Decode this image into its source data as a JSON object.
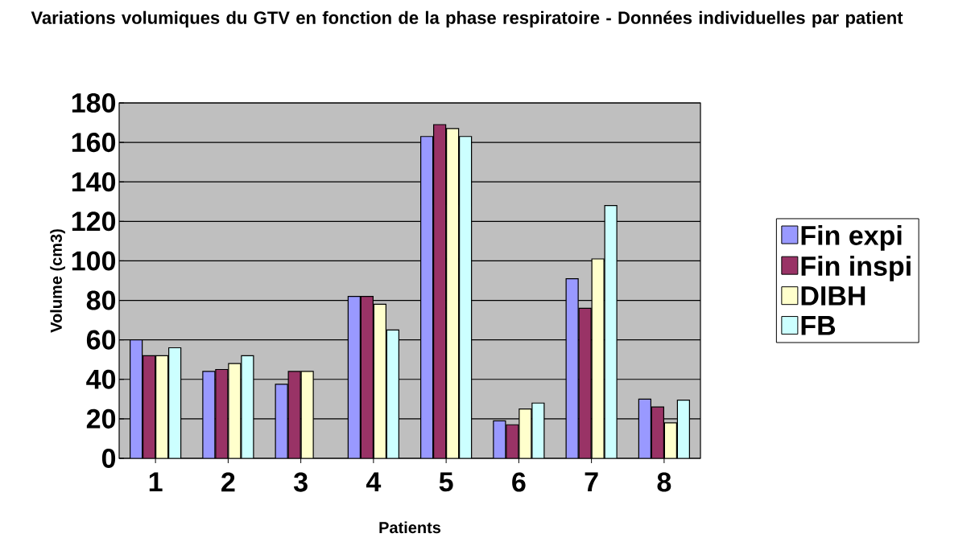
{
  "chart_data": {
    "type": "bar",
    "title": "Variations volumiques du GTV en fonction de la phase respiratoire - Données individuelles par patient",
    "xlabel": "Patients",
    "ylabel": "Volume (cm3)",
    "categories": [
      "1",
      "2",
      "3",
      "4",
      "5",
      "6",
      "7",
      "8"
    ],
    "series": [
      {
        "name": "Fin expi",
        "color": "#9999ff",
        "values": [
          60,
          44,
          37.5,
          82,
          163,
          19,
          91,
          30
        ]
      },
      {
        "name": "Fin inspi",
        "color": "#993366",
        "values": [
          52,
          45,
          44,
          82,
          169,
          17,
          76,
          26
        ]
      },
      {
        "name": "DIBH",
        "color": "#ffffcc",
        "values": [
          52,
          48,
          44,
          78,
          167,
          25,
          101,
          18
        ]
      },
      {
        "name": "FB",
        "color": "#ccffff",
        "values": [
          56,
          52,
          null,
          65,
          163,
          28,
          128,
          29.5
        ]
      }
    ],
    "ylim": [
      0,
      180
    ],
    "yticks": [
      0,
      20,
      40,
      60,
      80,
      100,
      120,
      140,
      160,
      180
    ],
    "grid": "y",
    "legend": "right"
  }
}
